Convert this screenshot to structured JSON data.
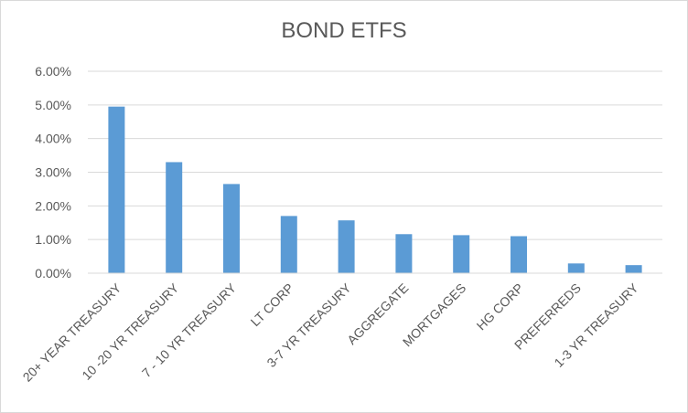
{
  "chart_data": {
    "type": "bar",
    "title": "BOND ETFS",
    "xlabel": "",
    "ylabel": "",
    "categories": [
      "20+ YEAR TREASURY",
      "10 -20 YR TREASURY",
      "7 - 10 YR TREASURY",
      "LT CORP",
      "3-7 YR TREASURY",
      "AGGREGATE",
      "MORTGAGES",
      "HG CORP",
      "PREFERREDS",
      "1-3 YR TREASURY"
    ],
    "values": [
      0.0495,
      0.033,
      0.0265,
      0.017,
      0.0157,
      0.0116,
      0.0113,
      0.011,
      0.0029,
      0.0024
    ],
    "ylim": [
      0,
      0.06
    ],
    "yticks": [
      "0.00%",
      "1.00%",
      "2.00%",
      "3.00%",
      "4.00%",
      "5.00%",
      "6.00%"
    ],
    "grid": true,
    "legend": "none",
    "bar_color": "#5b9bd5",
    "grid_color": "#d9d9d9",
    "text_color": "#595959"
  }
}
